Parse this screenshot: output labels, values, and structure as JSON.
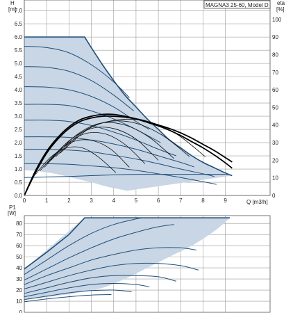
{
  "chart_data": [
    {
      "type": "line",
      "title": "MAGNA3 25-60, Model D",
      "ylabel": "H",
      "yunit": "[m]",
      "y2label": "eta",
      "y2unit": "[%]",
      "xlabel": "Q [m3/h]",
      "xticks": [
        "0",
        "1",
        "2",
        "3",
        "4",
        "5",
        "6",
        "7",
        "8",
        "9"
      ],
      "yticks": [
        "0.0",
        "0.5",
        "1.0",
        "1.5",
        "2.0",
        "2.5",
        "3.0",
        "3.5",
        "4.0",
        "4.5",
        "5.0",
        "5.5",
        "6.0",
        "6.5",
        "7.0"
      ],
      "y2ticks": [
        "0",
        "10",
        "20",
        "30",
        "40",
        "50",
        "60",
        "70",
        "80",
        "90",
        "100"
      ],
      "xlim": [
        0,
        11
      ],
      "ylim": [
        0,
        7.4
      ],
      "y2lim": [
        0,
        111
      ],
      "grid": true,
      "envelope": {
        "max_flat_head": 6.0,
        "max_flat_until_q": 2.7,
        "q_at_max": [
          2.7,
          3.0,
          3.5,
          4.0,
          4.5,
          5.0,
          5.5,
          6.0,
          6.5,
          7.0,
          7.5,
          8.0,
          8.5,
          9.0,
          9.3
        ],
        "h_at_max": [
          6.0,
          5.6,
          4.95,
          4.35,
          3.8,
          3.35,
          2.9,
          2.5,
          2.1,
          1.8,
          1.5,
          1.25,
          1.05,
          0.85,
          0.75
        ],
        "q_at_min": [
          0,
          0.5,
          1.0,
          1.5,
          2.0,
          2.5,
          3.0,
          3.5,
          4.0,
          4.6
        ],
        "h_at_min": [
          0.95,
          0.93,
          0.88,
          0.8,
          0.7,
          0.6,
          0.5,
          0.38,
          0.28,
          0.18
        ]
      },
      "series": [
        {
          "q": [
            0,
            1,
            2,
            3,
            4,
            4.7
          ],
          "h": [
            5.65,
            5.6,
            5.4,
            4.95,
            4.3,
            3.7
          ]
        },
        {
          "q": [
            0,
            1,
            2,
            3,
            4,
            4.9
          ],
          "h": [
            4.88,
            4.85,
            4.7,
            4.35,
            3.8,
            3.2
          ]
        },
        {
          "q": [
            0,
            1,
            2,
            3,
            4,
            5,
            5.6
          ],
          "h": [
            4.12,
            4.1,
            4.0,
            3.75,
            3.35,
            2.8,
            2.5
          ]
        },
        {
          "q": [
            0,
            1,
            2,
            3,
            4,
            5,
            6.1
          ],
          "h": [
            3.45,
            3.45,
            3.4,
            3.2,
            2.9,
            2.5,
            2.0
          ]
        },
        {
          "q": [
            0,
            1,
            2,
            3,
            4,
            5,
            6,
            6.8
          ],
          "h": [
            2.85,
            2.85,
            2.8,
            2.65,
            2.4,
            2.1,
            1.75,
            1.5
          ]
        },
        {
          "q": [
            0,
            1,
            2,
            3,
            4,
            5,
            6,
            7,
            7.6
          ],
          "h": [
            2.22,
            2.22,
            2.2,
            2.1,
            1.95,
            1.75,
            1.5,
            1.25,
            1.08
          ]
        },
        {
          "q": [
            0,
            1,
            2,
            3,
            4,
            5,
            6,
            7,
            8,
            8.5
          ],
          "h": [
            1.75,
            1.75,
            1.72,
            1.65,
            1.52,
            1.38,
            1.2,
            1.0,
            0.82,
            0.72
          ]
        },
        {
          "q": [
            0,
            1,
            2,
            3,
            4,
            5,
            6,
            7,
            8,
            8.6
          ],
          "h": [
            1.2,
            1.2,
            1.18,
            1.12,
            1.05,
            0.95,
            0.82,
            0.68,
            0.52,
            0.42
          ]
        },
        {
          "q": [
            0,
            1,
            2,
            3,
            4,
            5,
            6,
            7,
            8,
            9,
            9.2
          ],
          "h": [
            0.68,
            0.7,
            0.72,
            0.75,
            0.78,
            0.8,
            0.8,
            0.8,
            0.8,
            0.8,
            0.78
          ]
        }
      ],
      "efficiency_curves": [
        {
          "q": [
            0,
            0.5,
            1.0,
            1.5,
            2.0,
            2.5,
            3.0,
            3.5,
            4.0,
            4.5,
            5.0,
            5.5,
            6.0,
            6.5,
            7.0,
            7.5,
            8.0,
            8.5,
            9.0,
            9.3
          ],
          "eta": [
            0,
            13,
            24,
            32,
            38,
            42,
            44,
            45,
            45,
            44.5,
            43.5,
            42,
            40,
            38,
            35.5,
            32.5,
            29,
            25.5,
            21.5,
            19
          ]
        },
        {
          "q": [
            0,
            0.5,
            1.0,
            1.5,
            2.0,
            2.5,
            3.0,
            3.5,
            4.0,
            4.5,
            5.0,
            5.5,
            6.0,
            6.5,
            7.0,
            7.5,
            8.0,
            8.5,
            9.0,
            9.3
          ],
          "eta": [
            0,
            14,
            25,
            33,
            39,
            43,
            45,
            46,
            46,
            45,
            43.5,
            41.5,
            39.5,
            37,
            34,
            30.5,
            27,
            23,
            18.5,
            15.5
          ]
        }
      ],
      "partial_efficiency_curves": [
        {
          "q": [
            0.5,
            1.2,
            1.9,
            2.6,
            3.3,
            4.1
          ],
          "eta": [
            12,
            22,
            27,
            27,
            22,
            13
          ]
        },
        {
          "q": [
            0.7,
            1.5,
            2.3,
            3.1,
            3.9,
            4.7
          ],
          "eta": [
            14,
            25,
            31,
            31,
            26,
            16
          ]
        },
        {
          "q": [
            0.9,
            1.8,
            2.7,
            3.6,
            4.5,
            5.4
          ],
          "eta": [
            16,
            28,
            35,
            35,
            29,
            18
          ]
        },
        {
          "q": [
            1.0,
            2.0,
            3.0,
            4.0,
            5.0,
            6.0
          ],
          "eta": [
            18,
            31,
            38,
            38,
            32,
            20
          ]
        },
        {
          "q": [
            1.2,
            2.3,
            3.4,
            4.5,
            5.6,
            6.7
          ],
          "eta": [
            20,
            34,
            41,
            40,
            33,
            21
          ]
        },
        {
          "q": [
            1.4,
            2.6,
            3.8,
            5.0,
            6.2,
            7.4
          ],
          "eta": [
            22,
            36,
            42,
            41,
            34,
            22
          ]
        },
        {
          "q": [
            1.6,
            2.9,
            4.2,
            5.5,
            6.8,
            8.1
          ],
          "eta": [
            24,
            38,
            43,
            42,
            35,
            22
          ]
        }
      ]
    },
    {
      "type": "line",
      "ylabel": "P1",
      "yunit": "[W]",
      "yticks": [
        "0",
        "10",
        "20",
        "30",
        "40",
        "50",
        "60",
        "70",
        "80"
      ],
      "ylim": [
        0,
        87
      ],
      "xlim": [
        0,
        11
      ],
      "grid": true,
      "envelope": {
        "max_flat_power": 85,
        "q_at_top": [
          0,
          2.7,
          9.2
        ],
        "p_at_top": [
          39,
          85,
          85
        ],
        "q_at_bottom": [
          9.2,
          8.5,
          7.5,
          6.5,
          5.5,
          4.6,
          3.5,
          2.5,
          1.5,
          0.5,
          0
        ],
        "p_at_bottom": [
          85,
          73,
          60,
          50,
          40,
          31,
          22,
          18,
          15,
          12.5,
          11
        ]
      },
      "series": [
        {
          "q": [
            0,
            1,
            2,
            2.7,
            5.3,
            9.2
          ],
          "p": [
            39,
            54,
            70,
            85,
            85,
            85
          ]
        },
        {
          "q": [
            0,
            1,
            2,
            3,
            4,
            5,
            5.3
          ],
          "p": [
            34,
            47,
            60,
            71,
            79,
            84,
            85
          ]
        },
        {
          "q": [
            0,
            1,
            2,
            3,
            4,
            5,
            6,
            6.7
          ],
          "p": [
            29,
            39,
            49,
            58,
            66,
            72,
            77,
            79
          ]
        },
        {
          "q": [
            0,
            1,
            2,
            3,
            4,
            5,
            6,
            7,
            7.7
          ],
          "p": [
            25,
            33,
            40,
            47,
            52,
            56,
            58,
            58,
            56
          ]
        },
        {
          "q": [
            0,
            1,
            2,
            3,
            4,
            5,
            6,
            7,
            7.8
          ],
          "p": [
            21,
            27,
            33,
            38,
            42,
            44,
            44,
            42,
            38
          ]
        },
        {
          "q": [
            0,
            1,
            2,
            3,
            4,
            5,
            6,
            6.8
          ],
          "p": [
            17,
            22,
            27,
            31,
            33,
            33,
            32,
            28
          ]
        },
        {
          "q": [
            0,
            1,
            2,
            3,
            4,
            5,
            5.6
          ],
          "p": [
            14,
            18,
            22,
            25,
            26,
            25,
            23
          ]
        },
        {
          "q": [
            0,
            1,
            2,
            3,
            4,
            4.8
          ],
          "p": [
            11.5,
            14.5,
            17.5,
            19.5,
            20,
            18.5
          ]
        },
        {
          "q": [
            0,
            1,
            2,
            3,
            3.9
          ],
          "p": [
            9.5,
            12,
            14,
            15.5,
            16
          ]
        }
      ]
    }
  ]
}
